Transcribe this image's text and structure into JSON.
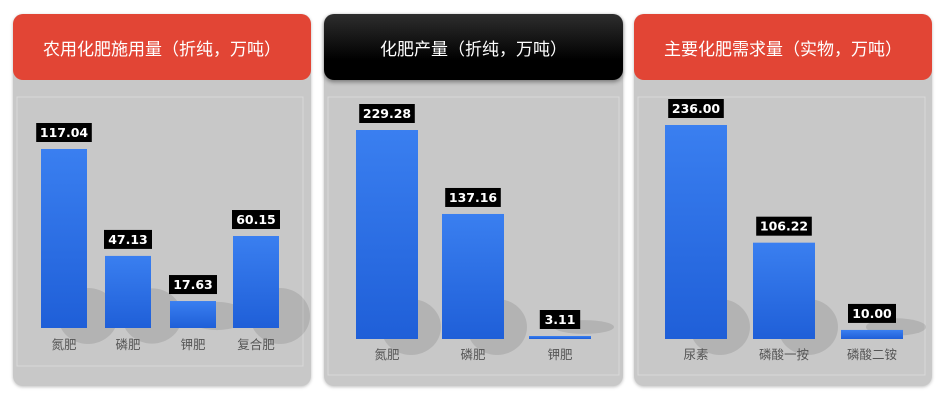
{
  "chart_data": [
    {
      "type": "bar",
      "title": "农用化肥施用量（折纯，万吨）",
      "categories": [
        "氮肥",
        "磷肥",
        "钾肥",
        "复合肥"
      ],
      "values": [
        117.04,
        47.13,
        17.63,
        60.15
      ],
      "value_labels": [
        "117.04",
        "47.13",
        "17.63",
        "60.15"
      ],
      "header_color": "#e24535",
      "bar_color": "#2e6fe0"
    },
    {
      "type": "bar",
      "title": "化肥产量（折纯，万吨）",
      "categories": [
        "氮肥",
        "磷肥",
        "钾肥"
      ],
      "values": [
        229.28,
        137.16,
        3.11
      ],
      "value_labels": [
        "229.28",
        "137.16",
        "3.11"
      ],
      "header_color": "#000000",
      "bar_color": "#2e6fe0"
    },
    {
      "type": "bar",
      "title": "主要化肥需求量（实物，万吨）",
      "categories": [
        "尿素",
        "磷酸一按",
        "磷酸二铵"
      ],
      "values": [
        236.0,
        106.22,
        10.0
      ],
      "value_labels": [
        "236.00",
        "106.22",
        "10.00"
      ],
      "header_color": "#e24535",
      "bar_color": "#2e6fe0"
    }
  ]
}
